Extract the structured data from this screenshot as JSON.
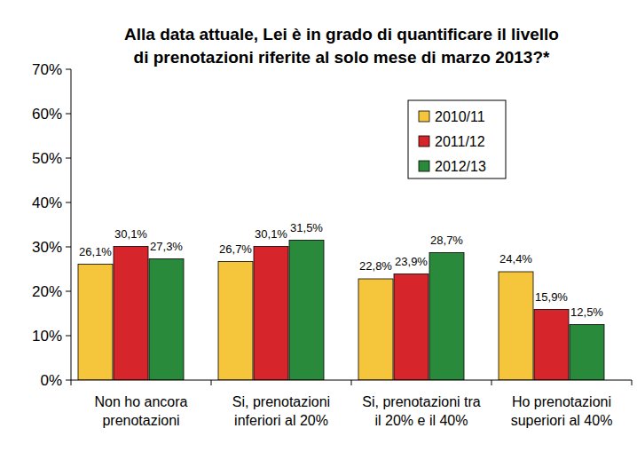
{
  "chart_data": {
    "type": "bar",
    "title": "Alla data attuale, Lei è in grado di quantificare il livello\ndi prenotazioni riferite al solo mese di marzo 2013?*",
    "categories": [
      "Non ho ancora\nprenotazioni",
      "Si, prenotazioni\ninferiori al 20%",
      "Si, prenotazioni tra\nil 20% e il 40%",
      "Ho prenotazioni\nsuperiori al 40%"
    ],
    "series": [
      {
        "name": "2010/11",
        "color": "#f5c63c",
        "values": [
          26.1,
          26.7,
          22.8,
          24.4
        ],
        "value_labels": [
          "26,1%",
          "26,7%",
          "22,8%",
          "24,4%"
        ]
      },
      {
        "name": "2011/12",
        "color": "#d7262b",
        "values": [
          30.1,
          30.1,
          23.9,
          15.9
        ],
        "value_labels": [
          "30,1%",
          "30,1%",
          "23,9%",
          "15,9%"
        ]
      },
      {
        "name": "2012/13",
        "color": "#2a8a3c",
        "values": [
          27.3,
          31.5,
          28.7,
          12.5
        ],
        "value_labels": [
          "27,3%",
          "31,5%",
          "28,7%",
          "12,5%"
        ]
      }
    ],
    "ylim": [
      0,
      70
    ],
    "yticks": [
      {
        "value": 0,
        "label": "0%"
      },
      {
        "value": 10,
        "label": "10%"
      },
      {
        "value": 20,
        "label": "20%"
      },
      {
        "value": 30,
        "label": "30%"
      },
      {
        "value": 40,
        "label": "40%"
      },
      {
        "value": 50,
        "label": "50%"
      },
      {
        "value": 60,
        "label": "60%"
      },
      {
        "value": 70,
        "label": "70%"
      }
    ],
    "grid": false,
    "legend": "upper right",
    "data_labels": true
  }
}
